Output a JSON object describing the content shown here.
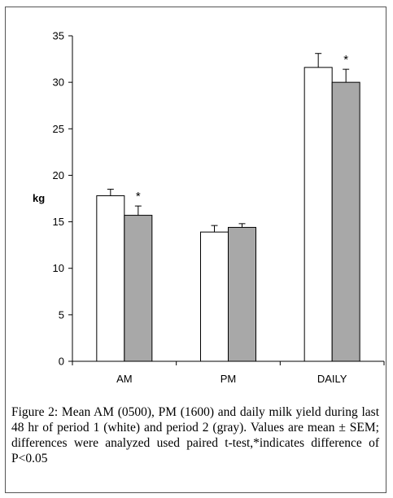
{
  "chart_data": {
    "type": "bar",
    "ylabel": "kg",
    "ylim": [
      0,
      35
    ],
    "yticks": [
      0,
      5,
      10,
      15,
      20,
      25,
      30,
      35
    ],
    "categories": [
      "AM",
      "PM",
      "DAILY"
    ],
    "series": [
      {
        "color": "#ffffff",
        "values": [
          17.8,
          13.9,
          31.6
        ],
        "errors": [
          0.7,
          0.7,
          1.5
        ]
      },
      {
        "color": "#a8a8a8",
        "values": [
          15.7,
          14.4,
          30.0
        ],
        "errors": [
          1.0,
          0.4,
          1.4
        ]
      }
    ],
    "annotations": [
      {
        "category": "AM",
        "series": 1,
        "text": "*"
      },
      {
        "category": "DAILY",
        "series": 1,
        "text": "*"
      }
    ]
  },
  "caption": {
    "label": "Figure 2:",
    "text": " Mean AM (0500), PM (1600) and daily milk yield during last 48 hr of period 1 (white) and period 2 (gray). Values are mean ± SEM; differences were analyzed used paired t-test,*indicates difference of P<0.05"
  }
}
